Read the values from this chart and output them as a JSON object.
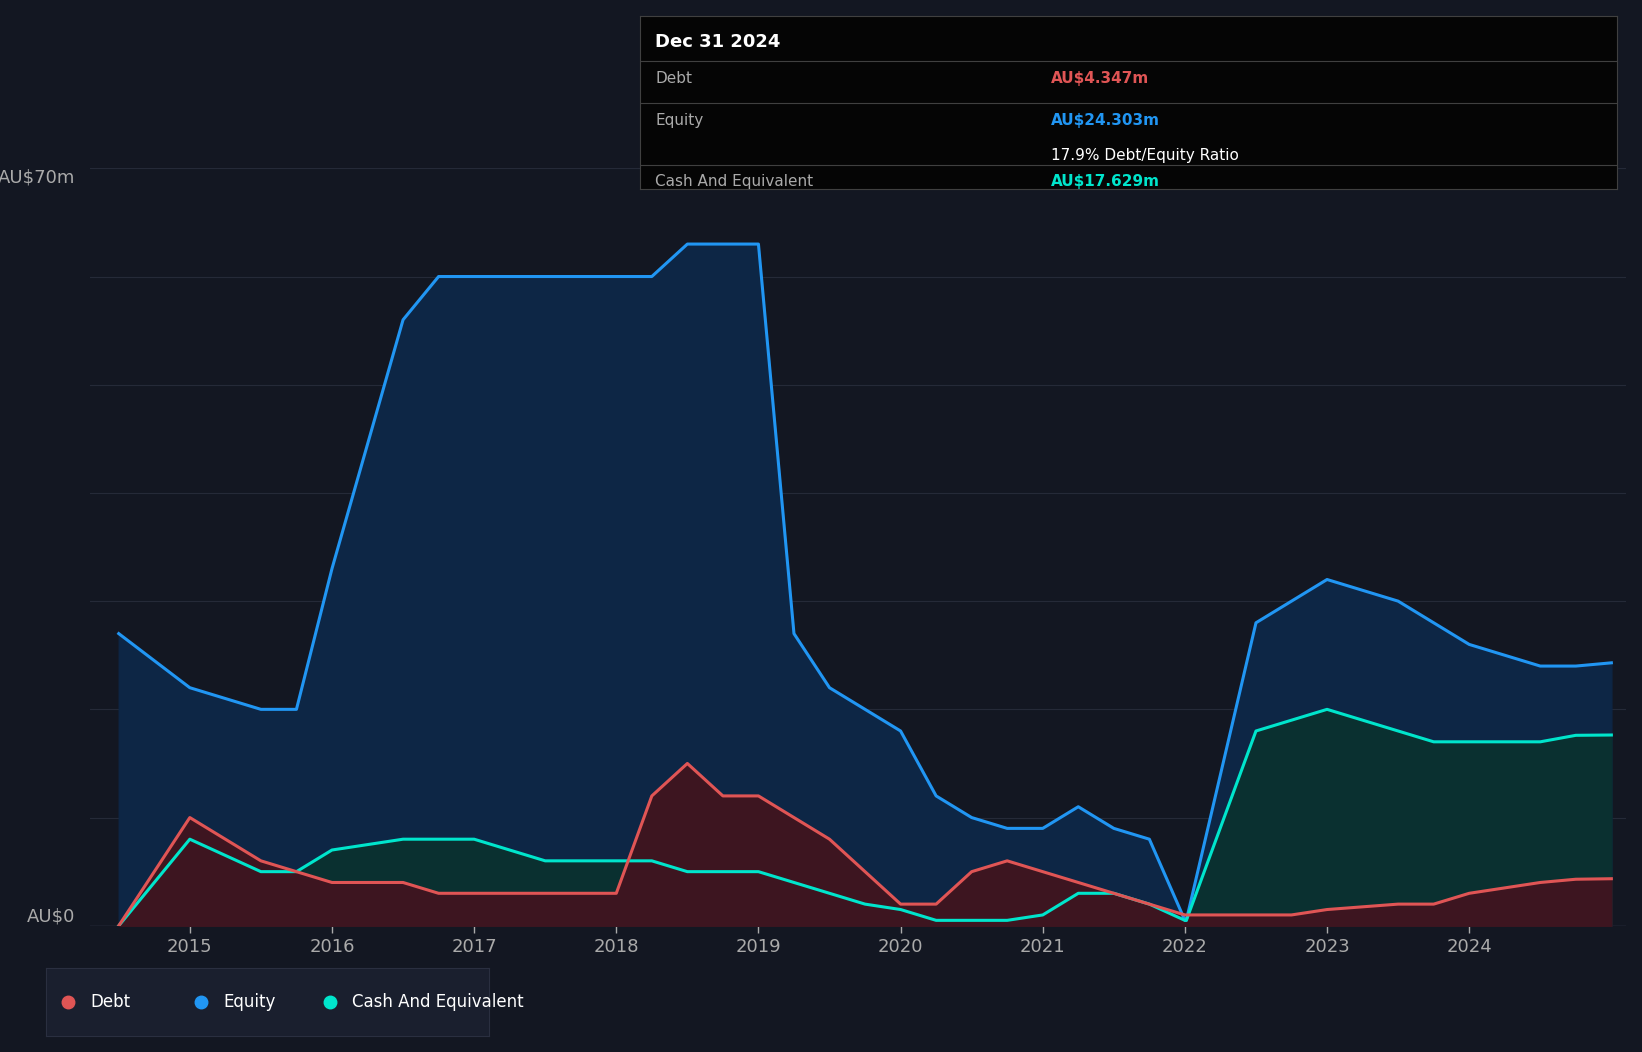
{
  "bg_color": "#131722",
  "plot_bg_color": "#131722",
  "equity_color": "#2196f3",
  "equity_fill": "#0d2645",
  "debt_color": "#e05555",
  "debt_fill": "#3d1520",
  "cash_color": "#00e5cc",
  "cash_fill": "#0a3030",
  "grid_color": "#252a38",
  "text_color": "#aaaaaa",
  "white": "#ffffff",
  "ylabel_text": "AU$70m",
  "ylabel_zero": "AU$0",
  "ylim": [
    0,
    70
  ],
  "tooltip_bg": "#050505",
  "tooltip_border": "#404040",
  "tooltip_title": "Dec 31 2024",
  "tooltip_debt_label": "Debt",
  "tooltip_debt_value": "AU$4.347m",
  "tooltip_equity_label": "Equity",
  "tooltip_equity_value": "AU$24.303m",
  "tooltip_ratio": "17.9% Debt/Equity Ratio",
  "tooltip_cash_label": "Cash And Equivalent",
  "tooltip_cash_value": "AU$17.629m",
  "dates": [
    2014.5,
    2015.0,
    2015.5,
    2015.75,
    2016.0,
    2016.5,
    2016.75,
    2017.0,
    2017.5,
    2018.0,
    2018.25,
    2018.5,
    2018.75,
    2019.0,
    2019.25,
    2019.5,
    2019.75,
    2020.0,
    2020.25,
    2020.5,
    2020.75,
    2021.0,
    2021.25,
    2021.5,
    2021.75,
    2022.0,
    2022.01,
    2022.5,
    2022.75,
    2023.0,
    2023.5,
    2023.75,
    2024.0,
    2024.5,
    2024.75,
    2025.0
  ],
  "equity": [
    27,
    22,
    20,
    20,
    33,
    56,
    60,
    60,
    60,
    60,
    60,
    63,
    63,
    63,
    27,
    22,
    20,
    18,
    12,
    10,
    9,
    9,
    11,
    9,
    8,
    0.5,
    0.5,
    28,
    30,
    32,
    30,
    28,
    26,
    24,
    24,
    24.3
  ],
  "debt": [
    0,
    10,
    6,
    5,
    4,
    4,
    3,
    3,
    3,
    3,
    12,
    15,
    12,
    12,
    10,
    8,
    5,
    2,
    2,
    5,
    6,
    5,
    4,
    3,
    2,
    1,
    1,
    1,
    1,
    1.5,
    2,
    2,
    3,
    4,
    4.3,
    4.347
  ],
  "cash": [
    0,
    8,
    5,
    5,
    7,
    8,
    8,
    8,
    6,
    6,
    6,
    5,
    5,
    5,
    4,
    3,
    2,
    1.5,
    0.5,
    0.5,
    0.5,
    1,
    3,
    3,
    2,
    0.5,
    0.5,
    18,
    19,
    20,
    18,
    17,
    17,
    17,
    17.6,
    17.629
  ],
  "xticks": [
    2015,
    2016,
    2017,
    2018,
    2019,
    2020,
    2021,
    2022,
    2023,
    2024
  ],
  "figsize": [
    16.42,
    10.52
  ],
  "dpi": 100
}
